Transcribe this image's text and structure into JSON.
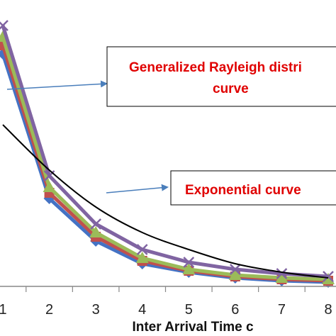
{
  "chart_data": {
    "type": "line",
    "xlabel": "Inter Arrival Time c",
    "x": [
      1,
      2,
      3,
      4,
      5,
      6,
      7,
      8
    ],
    "x_range": [
      0.5,
      8.2
    ],
    "y_range": [
      0,
      1
    ],
    "grid": false,
    "series": [
      {
        "color": "#4472C4",
        "marker": "diamond",
        "values": [
          0.82,
          0.31,
          0.16,
          0.08,
          0.05,
          0.03,
          0.02,
          0.015
        ]
      },
      {
        "color": "#C0504D",
        "marker": "square",
        "values": [
          0.85,
          0.33,
          0.175,
          0.09,
          0.055,
          0.035,
          0.025,
          0.02
        ]
      },
      {
        "color": "#9BBB59",
        "marker": "triangle",
        "values": [
          0.88,
          0.35,
          0.19,
          0.1,
          0.06,
          0.04,
          0.03,
          0.025
        ]
      },
      {
        "color": "#8064A2",
        "marker": "x",
        "values": [
          0.92,
          0.39,
          0.22,
          0.13,
          0.085,
          0.06,
          0.045,
          0.035
        ]
      },
      {
        "color": "#000000",
        "marker": "none",
        "values": [
          0.57,
          0.41,
          0.28,
          0.19,
          0.13,
          0.08,
          0.05,
          0.03
        ]
      }
    ],
    "annotations": [
      {
        "text_lines": [
          "Generalized Rayleigh distri",
          "curve"
        ],
        "color": "#E00000"
      },
      {
        "text_lines": [
          "Exponential curve"
        ],
        "color": "#E00000"
      }
    ],
    "tick_labels": [
      "1",
      "2",
      "3",
      "4",
      "5",
      "6",
      "7",
      "8"
    ]
  }
}
